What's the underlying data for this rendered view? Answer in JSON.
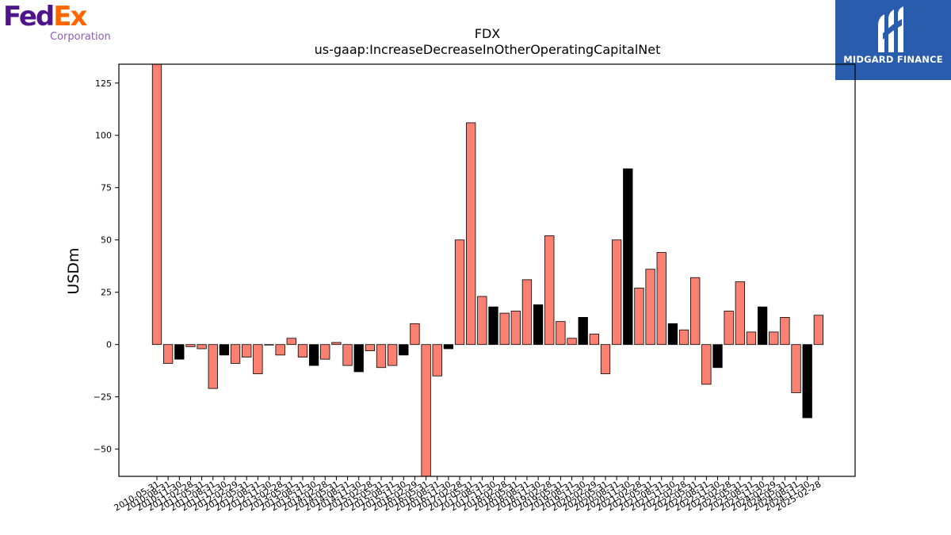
{
  "logos": {
    "left": {
      "word_fed": "Fed",
      "word_ex": "Ex",
      "sub": "Corporation"
    },
    "right": {
      "text": "MIDGARD FINANCE"
    }
  },
  "colors": {
    "positive_bar": "#fa8072",
    "highlight_bar": "#000000",
    "bar_edge": "#000000"
  },
  "chart_data": {
    "type": "bar",
    "title": "FDX",
    "subtitle": "us-gaap:IncreaseDecreaseInOtherOperatingCapitalNet",
    "ylabel": "USDm",
    "xlabel": "",
    "ylim": [
      -63,
      134
    ],
    "yticks": [
      -50,
      -25,
      0,
      25,
      50,
      75,
      100,
      125
    ],
    "grid": false,
    "categories": [
      "2010-05-31",
      "2010-08-31",
      "2010-11-30",
      "2011-02-28",
      "2011-05-31",
      "2011-08-31",
      "2011-11-30",
      "2012-02-29",
      "2012-05-31",
      "2012-08-31",
      "2012-11-30",
      "2013-02-28",
      "2013-05-31",
      "2013-08-31",
      "2013-11-30",
      "2014-02-28",
      "2014-05-31",
      "2014-08-31",
      "2014-11-30",
      "2015-02-28",
      "2015-05-31",
      "2015-08-31",
      "2015-11-30",
      "2016-02-29",
      "2016-05-31",
      "2016-08-31",
      "2016-11-30",
      "2017-02-28",
      "2017-05-31",
      "2017-08-31",
      "2017-11-30",
      "2018-02-28",
      "2018-05-31",
      "2018-08-31",
      "2018-11-30",
      "2019-02-28",
      "2019-05-31",
      "2019-08-31",
      "2019-11-30",
      "2020-02-29",
      "2020-05-31",
      "2020-08-31",
      "2020-11-30",
      "2021-02-28",
      "2021-05-31",
      "2021-08-31",
      "2021-11-30",
      "2022-02-28",
      "2022-05-31",
      "2022-08-31",
      "2022-11-30",
      "2023-02-28",
      "2023-05-31",
      "2023-08-31",
      "2023-11-30",
      "2024-02-29",
      "2024-05-31",
      "2024-08-31",
      "2024-11-30",
      "2025-02-28"
    ],
    "values": [
      134,
      -9,
      -7,
      -1,
      -2,
      -21,
      -5,
      -9,
      -6,
      -14,
      0,
      -5,
      3,
      -6,
      -10,
      -7,
      1,
      -10,
      -13,
      -3,
      -11,
      -10,
      -5,
      10,
      -63,
      -15,
      -2,
      50,
      106,
      23,
      18,
      15,
      16,
      31,
      19,
      52,
      11,
      3,
      13,
      5,
      -14,
      50,
      84,
      27,
      36,
      44,
      10,
      7,
      32,
      -19,
      -11,
      16,
      30,
      6,
      18,
      6,
      13,
      -23,
      -35,
      14
    ],
    "highlighted": [
      false,
      false,
      true,
      false,
      false,
      false,
      true,
      false,
      false,
      false,
      false,
      false,
      false,
      false,
      true,
      false,
      false,
      false,
      true,
      false,
      false,
      false,
      true,
      false,
      false,
      false,
      true,
      false,
      false,
      false,
      true,
      false,
      false,
      false,
      true,
      false,
      false,
      false,
      true,
      false,
      false,
      false,
      true,
      false,
      false,
      false,
      true,
      false,
      false,
      false,
      true,
      false,
      false,
      false,
      true,
      false,
      false,
      false,
      true,
      false
    ]
  }
}
